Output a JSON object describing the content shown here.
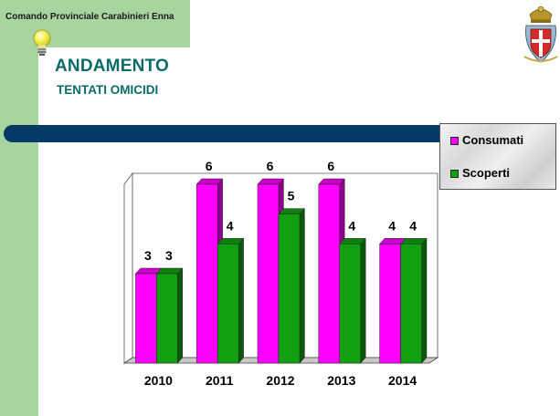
{
  "header": {
    "org_name": "Comando Provinciale Carabinieri Enna",
    "title": "ANDAMENTO",
    "subtitle": "TENTATI OMICIDI"
  },
  "colors": {
    "consumati": "#ff00ff",
    "scoperti": "#12a012",
    "side_bar": "#a8d4a0",
    "title": "#0b6b68",
    "divider": "#063a66"
  },
  "icons": {
    "bulb": "lightbulb-icon",
    "crest": "carabinieri-crest-icon"
  },
  "chart_data": {
    "type": "bar",
    "categories": [
      "2010",
      "2011",
      "2012",
      "2013",
      "2014"
    ],
    "series": [
      {
        "name": "Consumati",
        "values": [
          3,
          6,
          6,
          6,
          4
        ]
      },
      {
        "name": "Scoperti",
        "values": [
          3,
          4,
          5,
          4,
          4
        ]
      }
    ],
    "ylim": [
      0,
      6
    ],
    "grid": false,
    "legend_position": "top-right",
    "data_labels": true,
    "three_d": true
  }
}
